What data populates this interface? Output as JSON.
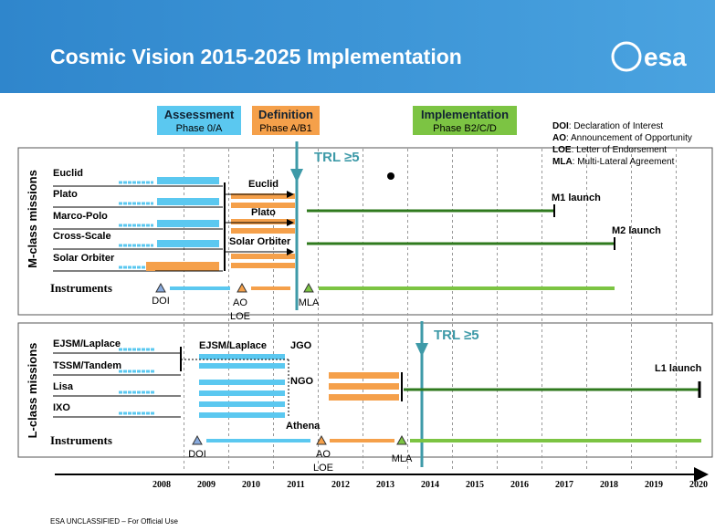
{
  "header": {
    "title": "Cosmic Vision 2015-2025 Implementation",
    "logo": "esa"
  },
  "phases": [
    {
      "name": "Assessment",
      "sub": "Phase 0/A"
    },
    {
      "name": "Definition",
      "sub": "Phase A/B1"
    },
    {
      "name": "Implementation",
      "sub": "Phase B2/C/D"
    }
  ],
  "legend": [
    {
      "abbr": "DOI",
      "text": ": Declaration of Interest"
    },
    {
      "abbr": "AO",
      "text": ": Announcement of Opportunity"
    },
    {
      "abbr": "LOE",
      "text": ": Letter of Endorsement"
    },
    {
      "abbr": "MLA",
      "text": ": Multi-Lateral Agreement"
    }
  ],
  "m_class": {
    "label": "M-class missions",
    "missions": [
      "Euclid",
      "Plato",
      "Marco-Polo",
      "Cross-Scale",
      "Solar Orbiter"
    ],
    "instruments": "Instruments",
    "selected": [
      "Euclid",
      "Plato",
      "Solar Orbiter"
    ],
    "trl": "TRL ≥5",
    "launches": [
      "M1 launch",
      "M2 launch"
    ],
    "milestones": [
      "DOI",
      "AO",
      "LOE",
      "MLA"
    ]
  },
  "l_class": {
    "label": "L-class missions",
    "missions": [
      "EJSM/Laplace",
      "TSSM/Tandem",
      "Lisa",
      "IXO"
    ],
    "instruments": "Instruments",
    "selected": [
      "EJSM/Laplace",
      "JGO",
      "NGO",
      "Athena"
    ],
    "trl": "TRL ≥5",
    "launches": [
      "L1 launch"
    ],
    "milestones": [
      "DOI",
      "AO",
      "LOE",
      "MLA"
    ]
  },
  "years": [
    "2008",
    "2009",
    "2010",
    "2011",
    "2012",
    "2013",
    "2014",
    "2015",
    "2016",
    "2017",
    "2018",
    "2019",
    "2020"
  ],
  "footer": "ESA UNCLASSIFIED – For Official Use"
}
